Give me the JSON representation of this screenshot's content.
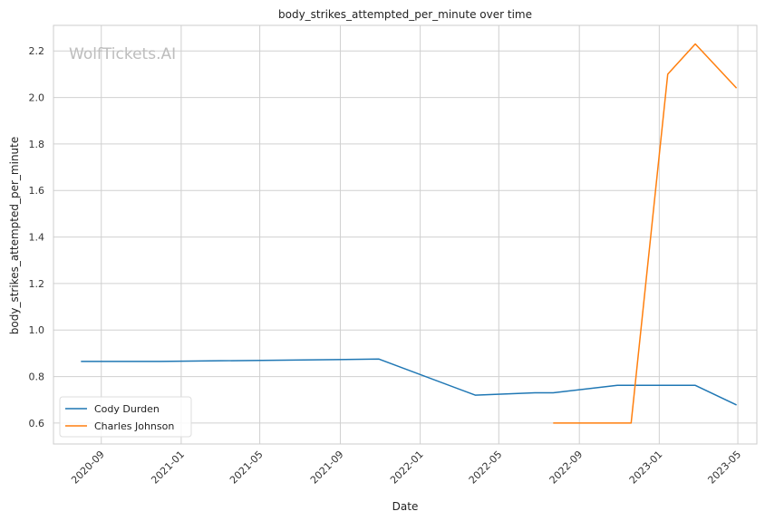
{
  "chart_data": {
    "type": "line",
    "title": "body_strikes_attempted_per_minute over time",
    "xlabel": "Date",
    "ylabel": "body_strikes_attempted_per_minute",
    "watermark": "WolfTickets.AI",
    "x_ticks": [
      "2020-09",
      "2021-01",
      "2021-05",
      "2021-09",
      "2022-01",
      "2022-05",
      "2022-09",
      "2023-01",
      "2023-05"
    ],
    "y_ticks": [
      0.6,
      0.8,
      1.0,
      1.2,
      1.4,
      1.6,
      1.8,
      2.0,
      2.2
    ],
    "xlim": [
      "2020-06-20",
      "2023-05-30"
    ],
    "ylim": [
      0.51,
      2.31
    ],
    "grid": true,
    "legend_position": "lower-left",
    "series": [
      {
        "name": "Cody Durden",
        "color": "#1f77b4",
        "points": [
          {
            "x": "2020-08-01",
            "y": 0.865
          },
          {
            "x": "2020-11-30",
            "y": 0.865
          },
          {
            "x": "2021-10-30",
            "y": 0.875
          },
          {
            "x": "2022-03-26",
            "y": 0.72
          },
          {
            "x": "2022-06-25",
            "y": 0.73
          },
          {
            "x": "2022-07-23",
            "y": 0.73
          },
          {
            "x": "2022-10-29",
            "y": 0.762
          },
          {
            "x": "2023-02-25",
            "y": 0.762
          },
          {
            "x": "2023-04-29",
            "y": 0.678
          }
        ]
      },
      {
        "name": "Charles Johnson",
        "color": "#ff7f0e",
        "points": [
          {
            "x": "2022-07-23",
            "y": 0.6
          },
          {
            "x": "2022-11-19",
            "y": 0.6
          },
          {
            "x": "2023-01-14",
            "y": 2.1
          },
          {
            "x": "2023-02-25",
            "y": 2.23
          },
          {
            "x": "2023-04-29",
            "y": 2.04
          }
        ]
      }
    ]
  }
}
